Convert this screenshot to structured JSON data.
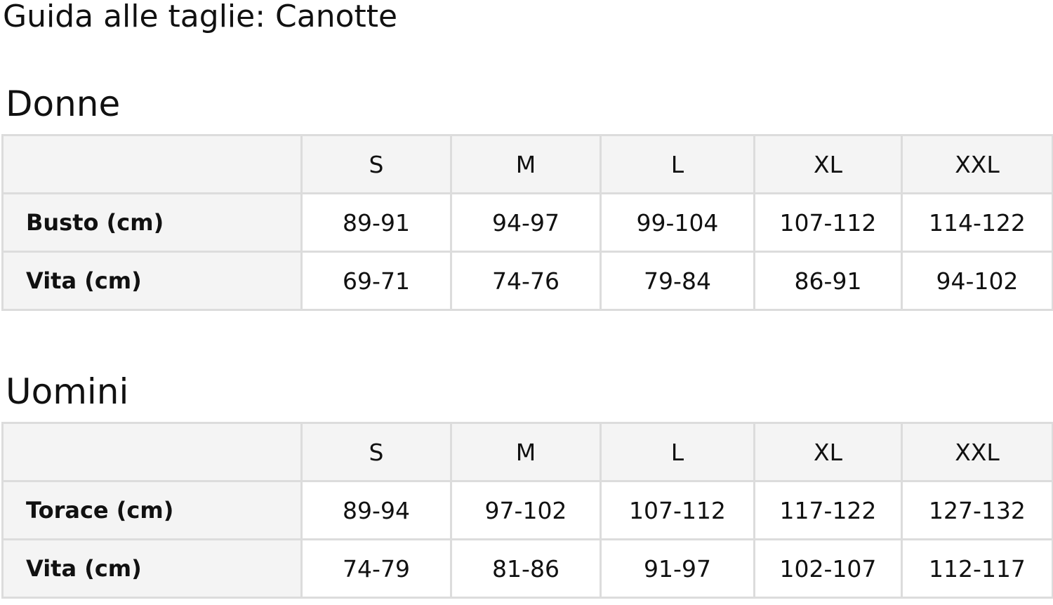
{
  "title": "Guida alle taglie: Canotte",
  "sections": [
    {
      "heading": "Donne",
      "sizes": [
        "S",
        "M",
        "L",
        "XL",
        "XXL"
      ],
      "rows": [
        {
          "label": "Busto (cm)",
          "values": [
            "89-91",
            "94-97",
            "99-104",
            "107-112",
            "114-122"
          ]
        },
        {
          "label": "Vita (cm)",
          "values": [
            "69-71",
            "74-76",
            "79-84",
            "86-91",
            "94-102"
          ]
        }
      ]
    },
    {
      "heading": "Uomini",
      "sizes": [
        "S",
        "M",
        "L",
        "XL",
        "XXL"
      ],
      "rows": [
        {
          "label": "Torace (cm)",
          "values": [
            "89-94",
            "97-102",
            "107-112",
            "117-122",
            "127-132"
          ]
        },
        {
          "label": "Vita (cm)",
          "values": [
            "74-79",
            "81-86",
            "91-97",
            "102-107",
            "112-117"
          ]
        }
      ]
    }
  ]
}
